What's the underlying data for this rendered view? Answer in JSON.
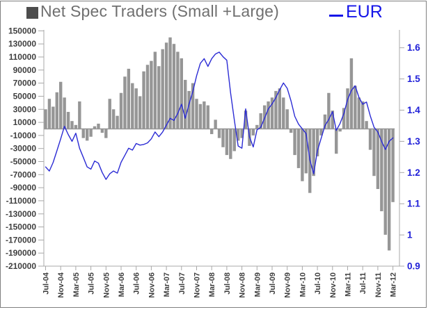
{
  "title": {
    "text": "Net Spec Traders (Small +Large)",
    "color": "#6f6f6f",
    "marker_color": "#4d4d4d"
  },
  "legend_line": {
    "label": "EUR",
    "color": "#1414e8"
  },
  "chart_data": {
    "type": "combo",
    "x": [
      "Jul-04",
      "Aug-04",
      "Sep-04",
      "Oct-04",
      "Nov-04",
      "Dec-04",
      "Jan-05",
      "Feb-05",
      "Mar-05",
      "Apr-05",
      "May-05",
      "Jun-05",
      "Jul-05",
      "Aug-05",
      "Sep-05",
      "Oct-05",
      "Nov-05",
      "Dec-05",
      "Jan-06",
      "Feb-06",
      "Mar-06",
      "Apr-06",
      "May-06",
      "Jun-06",
      "Jul-06",
      "Aug-06",
      "Sep-06",
      "Oct-06",
      "Nov-06",
      "Dec-06",
      "Jan-07",
      "Feb-07",
      "Mar-07",
      "Apr-07",
      "May-07",
      "Jun-07",
      "Jul-07",
      "Aug-07",
      "Sep-07",
      "Oct-07",
      "Nov-07",
      "Dec-07",
      "Jan-08",
      "Feb-08",
      "Mar-08",
      "Apr-08",
      "May-08",
      "Jun-08",
      "Jul-08",
      "Aug-08",
      "Sep-08",
      "Oct-08",
      "Nov-08",
      "Dec-08",
      "Jan-09",
      "Feb-09",
      "Mar-09",
      "Apr-09",
      "May-09",
      "Jun-09",
      "Jul-09",
      "Aug-09",
      "Sep-09",
      "Oct-09",
      "Nov-09",
      "Dec-09",
      "Jan-10",
      "Feb-10",
      "Mar-10",
      "Apr-10",
      "May-10",
      "Jun-10",
      "Jul-10",
      "Aug-10",
      "Sep-10",
      "Oct-10",
      "Nov-10",
      "Dec-10",
      "Jan-11",
      "Feb-11",
      "Mar-11",
      "Apr-11",
      "May-11",
      "Jun-11",
      "Jul-11",
      "Aug-11",
      "Sep-11",
      "Oct-11",
      "Nov-11",
      "Dec-11",
      "Jan-12",
      "Feb-12",
      "Mar-12"
    ],
    "x_tick_labels": [
      "Jul-04",
      "Nov-04",
      "Mar-05",
      "Jul-05",
      "Nov-05",
      "Mar-06",
      "Jul-06",
      "Nov-06",
      "Mar-07",
      "Jul-07",
      "Nov-07",
      "Mar-08",
      "Jul-08",
      "Nov-08",
      "Mar-09",
      "Jul-09",
      "Nov-09",
      "Mar-10",
      "Jul-10",
      "Nov-10",
      "Mar-11",
      "Jul-11",
      "Nov-11",
      "Mar-12"
    ],
    "x_tick_every": 4,
    "grid": false,
    "legend_position": "top",
    "series": [
      {
        "name": "Net Spec Traders (Small +Large)",
        "type": "bar",
        "axis": "left",
        "color": "#969696",
        "values": [
          30000,
          46000,
          34000,
          56000,
          72000,
          48000,
          26000,
          12000,
          6000,
          42000,
          -14000,
          -18000,
          -12000,
          4000,
          8000,
          -6000,
          -14000,
          46000,
          30000,
          20000,
          55000,
          80000,
          92000,
          70000,
          62000,
          50000,
          88000,
          98000,
          104000,
          118000,
          96000,
          122000,
          132000,
          140000,
          130000,
          118000,
          108000,
          75000,
          58000,
          70000,
          46000,
          38000,
          42000,
          36000,
          -8000,
          14000,
          -14000,
          -28000,
          -40000,
          -46000,
          -34000,
          -18000,
          -14000,
          28000,
          -26000,
          -10000,
          6000,
          24000,
          36000,
          42000,
          48000,
          58000,
          62000,
          48000,
          30000,
          -6000,
          -40000,
          -60000,
          -80000,
          -68000,
          -98000,
          -72000,
          -42000,
          -10000,
          22000,
          55000,
          28000,
          -38000,
          -4000,
          32000,
          62000,
          108000,
          66000,
          48000,
          42000,
          12000,
          -32000,
          -72000,
          -92000,
          -126000,
          -162000,
          -186000,
          -112000
        ]
      },
      {
        "name": "EUR",
        "type": "line",
        "axis": "right",
        "color": "#2b2bd4",
        "values": [
          1.218,
          1.205,
          1.232,
          1.27,
          1.308,
          1.348,
          1.322,
          1.3,
          1.326,
          1.278,
          1.248,
          1.218,
          1.211,
          1.237,
          1.23,
          1.2,
          1.178,
          1.196,
          1.205,
          1.198,
          1.233,
          1.255,
          1.278,
          1.272,
          1.293,
          1.288,
          1.29,
          1.295,
          1.308,
          1.33,
          1.315,
          1.33,
          1.352,
          1.374,
          1.367,
          1.389,
          1.419,
          1.374,
          1.419,
          1.46,
          1.51,
          1.55,
          1.565,
          1.54,
          1.565,
          1.58,
          1.586,
          1.571,
          1.56,
          1.456,
          1.367,
          1.285,
          1.278,
          1.404,
          1.315,
          1.282,
          1.337,
          1.345,
          1.374,
          1.404,
          1.42,
          1.44,
          1.465,
          1.487,
          1.47,
          1.43,
          1.38,
          1.355,
          1.34,
          1.325,
          1.24,
          1.196,
          1.27,
          1.31,
          1.35,
          1.37,
          1.395,
          1.335,
          1.357,
          1.389,
          1.434,
          1.463,
          1.478,
          1.441,
          1.419,
          1.426,
          1.382,
          1.345,
          1.33,
          1.3,
          1.274,
          1.3,
          1.311
        ]
      }
    ],
    "left_axis": {
      "min": -210000,
      "max": 150000,
      "step": 20000,
      "tick_labels": [
        "150000",
        "130000",
        "110000",
        "90000",
        "70000",
        "50000",
        "30000",
        "10000",
        "-10000",
        "-30000",
        "-50000",
        "-70000",
        "-90000",
        "-110000",
        "-130000",
        "-150000",
        "-170000",
        "-190000",
        "-210000"
      ],
      "label_color": "#3f3f3f"
    },
    "right_axis": {
      "min": 0.9,
      "max": 1.65,
      "step": 0.1,
      "tick_labels": [
        "1.6",
        "1.5",
        "1.4",
        "1.3",
        "1.2",
        "1.1",
        "1",
        "0.9"
      ],
      "label_color": "#2020d8"
    },
    "axis_line_color": "#a8a8a8"
  }
}
